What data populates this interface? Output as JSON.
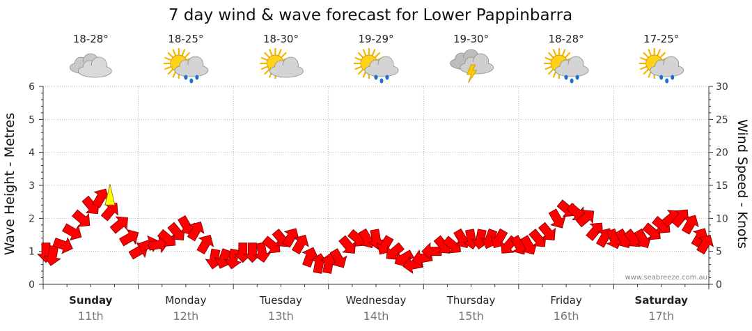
{
  "chart_data": {
    "type": "line",
    "title": "7 day wind & wave forecast for Lower Pappinbarra",
    "ylabel_left": "Wave Height - Metres",
    "ylabel_right": "Wind Speed - Knots",
    "left_ticks": [
      "0",
      "1",
      "2",
      "3",
      "4",
      "5",
      "6"
    ],
    "right_ticks": [
      "0",
      "5",
      "10",
      "15",
      "20",
      "25",
      "30"
    ],
    "ylim_left": [
      0,
      6
    ],
    "ylim_right": [
      0,
      30
    ],
    "grid": true,
    "watermark": "www.seabreeze.com.au",
    "days": [
      {
        "name": "Sunday",
        "date": "11th",
        "temp": "18-28°",
        "weather": "cloudy",
        "bold": true
      },
      {
        "name": "Monday",
        "date": "12th",
        "temp": "18-25°",
        "weather": "sun-showers",
        "bold": false
      },
      {
        "name": "Tuesday",
        "date": "13th",
        "temp": "18-30°",
        "weather": "partly-cloudy",
        "bold": false
      },
      {
        "name": "Wednesday",
        "date": "14th",
        "temp": "19-29°",
        "weather": "sun-showers",
        "bold": false
      },
      {
        "name": "Thursday",
        "date": "15th",
        "temp": "19-30°",
        "weather": "thunderstorm",
        "bold": false
      },
      {
        "name": "Friday",
        "date": "16th",
        "temp": "18-28°",
        "weather": "sun-showers",
        "bold": false
      },
      {
        "name": "Saturday",
        "date": "17th",
        "temp": "17-25°",
        "weather": "sun-showers",
        "bold": true
      }
    ],
    "series": [
      {
        "name": "Wind speed (knots)",
        "color": "#ff0000",
        "x_days": [
          0.0,
          0.1,
          0.2,
          0.3,
          0.4,
          0.5,
          0.6,
          0.7,
          0.8,
          0.9,
          1.0,
          1.1,
          1.2,
          1.3,
          1.4,
          1.5,
          1.6,
          1.7,
          1.8,
          1.9,
          2.0,
          2.1,
          2.2,
          2.3,
          2.4,
          2.5,
          2.6,
          2.7,
          2.8,
          2.9,
          3.0,
          3.1,
          3.2,
          3.3,
          3.4,
          3.5,
          3.6,
          3.7,
          3.8,
          3.9,
          4.0,
          4.1,
          4.2,
          4.3,
          4.4,
          4.5,
          4.6,
          4.7,
          4.8,
          4.9,
          5.0,
          5.1,
          5.2,
          5.3,
          5.4,
          5.5,
          5.6,
          5.7,
          5.8,
          5.9,
          6.0,
          6.1,
          6.2,
          6.3,
          6.4,
          6.5,
          6.6,
          6.7,
          6.8,
          6.9,
          7.0
        ],
        "values": [
          5,
          4.5,
          6,
          8,
          10,
          12,
          13,
          11,
          9,
          7,
          5,
          6,
          6,
          7,
          8,
          9,
          8,
          6,
          4,
          4,
          4,
          5,
          5,
          5,
          6,
          7,
          7,
          6,
          4,
          3,
          3,
          4,
          6,
          7,
          7,
          7,
          6,
          5,
          4,
          3,
          4,
          5,
          6,
          6,
          7,
          7,
          7,
          7,
          7,
          6,
          6,
          6,
          7,
          8,
          10,
          11.5,
          11,
          10,
          8,
          7,
          7,
          7,
          7,
          7,
          8,
          9,
          10,
          10,
          9,
          7,
          6
        ],
        "directions_deg": [
          90,
          100,
          20,
          30,
          40,
          50,
          300,
          310,
          320,
          330,
          330,
          340,
          350,
          40,
          50,
          60,
          300,
          300,
          100,
          110,
          100,
          90,
          90,
          80,
          40,
          50,
          300,
          300,
          290,
          280,
          280,
          60,
          50,
          40,
          60,
          80,
          120,
          140,
          150,
          170,
          170,
          180,
          50,
          40,
          60,
          80,
          100,
          110,
          120,
          130,
          60,
          60,
          50,
          50,
          60,
          40,
          40,
          320,
          310,
          300,
          70,
          60,
          50,
          60,
          40,
          40,
          320,
          310,
          300,
          300,
          300
        ]
      },
      {
        "name": "Wind gust marker",
        "color": "#ffff00",
        "x_days": [
          0.6
        ],
        "values": [
          13.5
        ]
      }
    ]
  }
}
